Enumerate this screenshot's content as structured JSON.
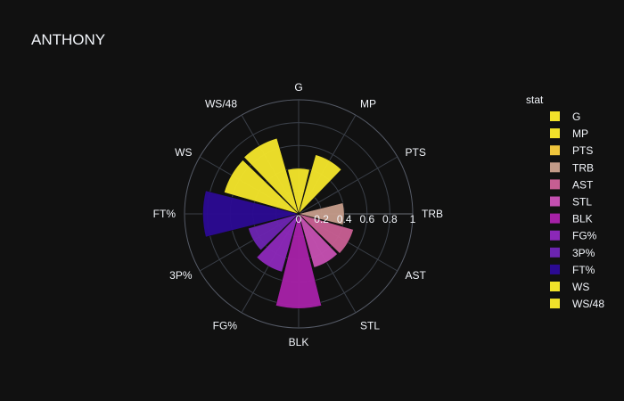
{
  "chart_data": {
    "type": "barpolar",
    "title": "ANTHONY",
    "legend_title": "stat",
    "legend_position": "right",
    "radial_ticks": [
      "0",
      "0.2",
      "0.4",
      "0.6",
      "0.8",
      "1"
    ],
    "radial_range": [
      0,
      1
    ],
    "categories": [
      "G",
      "MP",
      "PTS",
      "TRB",
      "AST",
      "STL",
      "BLK",
      "FG%",
      "3P%",
      "FT%",
      "WS",
      "WS/48"
    ],
    "values": [
      0.4,
      0.54,
      0.02,
      0.4,
      0.5,
      0.49,
      0.83,
      0.53,
      0.46,
      0.84,
      0.68,
      0.69
    ],
    "colors": [
      "#f1e22a",
      "#f1e22a",
      "#efc53c",
      "#c29a88",
      "#c65e92",
      "#c34fb0",
      "#a521a6",
      "#8b28b8",
      "#6b24b0",
      "#2b0a92",
      "#f1e22a",
      "#f1e22a"
    ],
    "grid": true
  }
}
